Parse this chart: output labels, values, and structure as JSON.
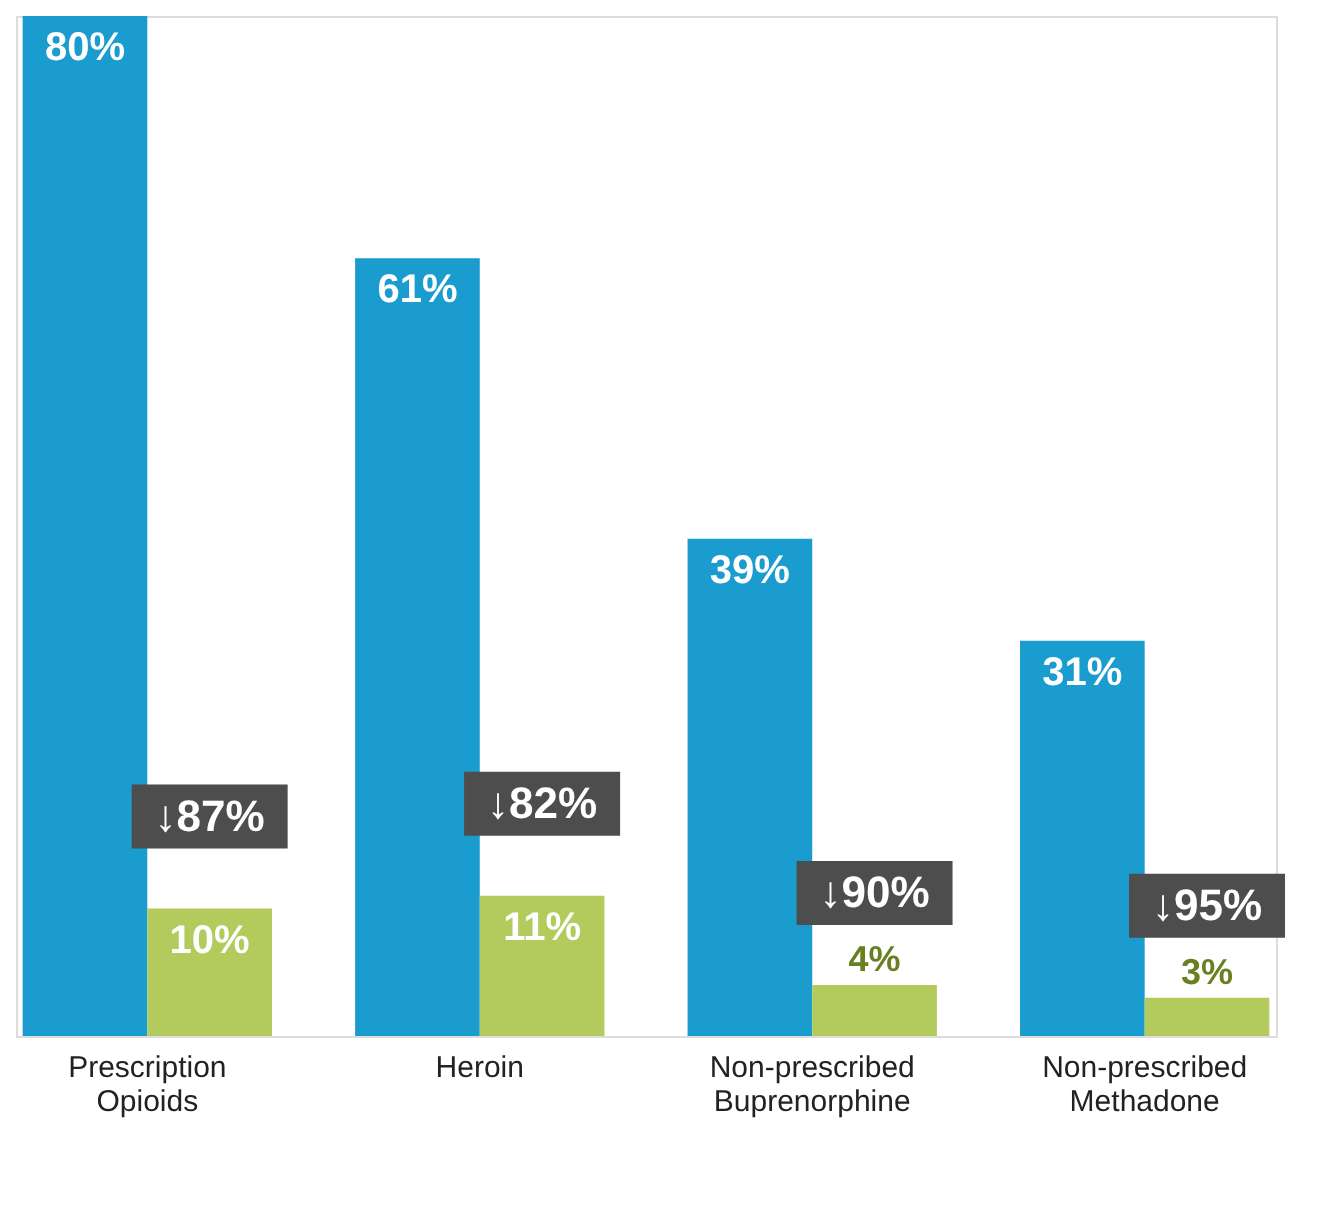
{
  "chart_data": {
    "type": "bar",
    "categories": [
      "Prescription Opioids",
      "Heroin",
      "Non-prescribed Buprenorphine",
      "Non-prescribed Methadone"
    ],
    "series": [
      {
        "color": "#1b9ccf",
        "values": [
          80,
          61,
          39,
          31
        ],
        "value_labels": [
          "80%",
          "61%",
          "39%",
          "31%"
        ]
      },
      {
        "color": "#b3cb5c",
        "values": [
          10,
          11,
          4,
          3
        ],
        "value_labels": [
          "10%",
          "11%",
          "4%",
          "3%"
        ]
      }
    ],
    "annotations": [
      {
        "text": "↓87%",
        "x": "Prescription Opioids",
        "y": 10
      },
      {
        "text": "↓82%",
        "x": "Heroin",
        "y": 11
      },
      {
        "text": "↓90%",
        "x": "Non-prescribed Buprenorphine",
        "y": 4
      },
      {
        "text": "↓95%",
        "x": "Non-prescribed Methadone",
        "y": 3
      }
    ]
  }
}
